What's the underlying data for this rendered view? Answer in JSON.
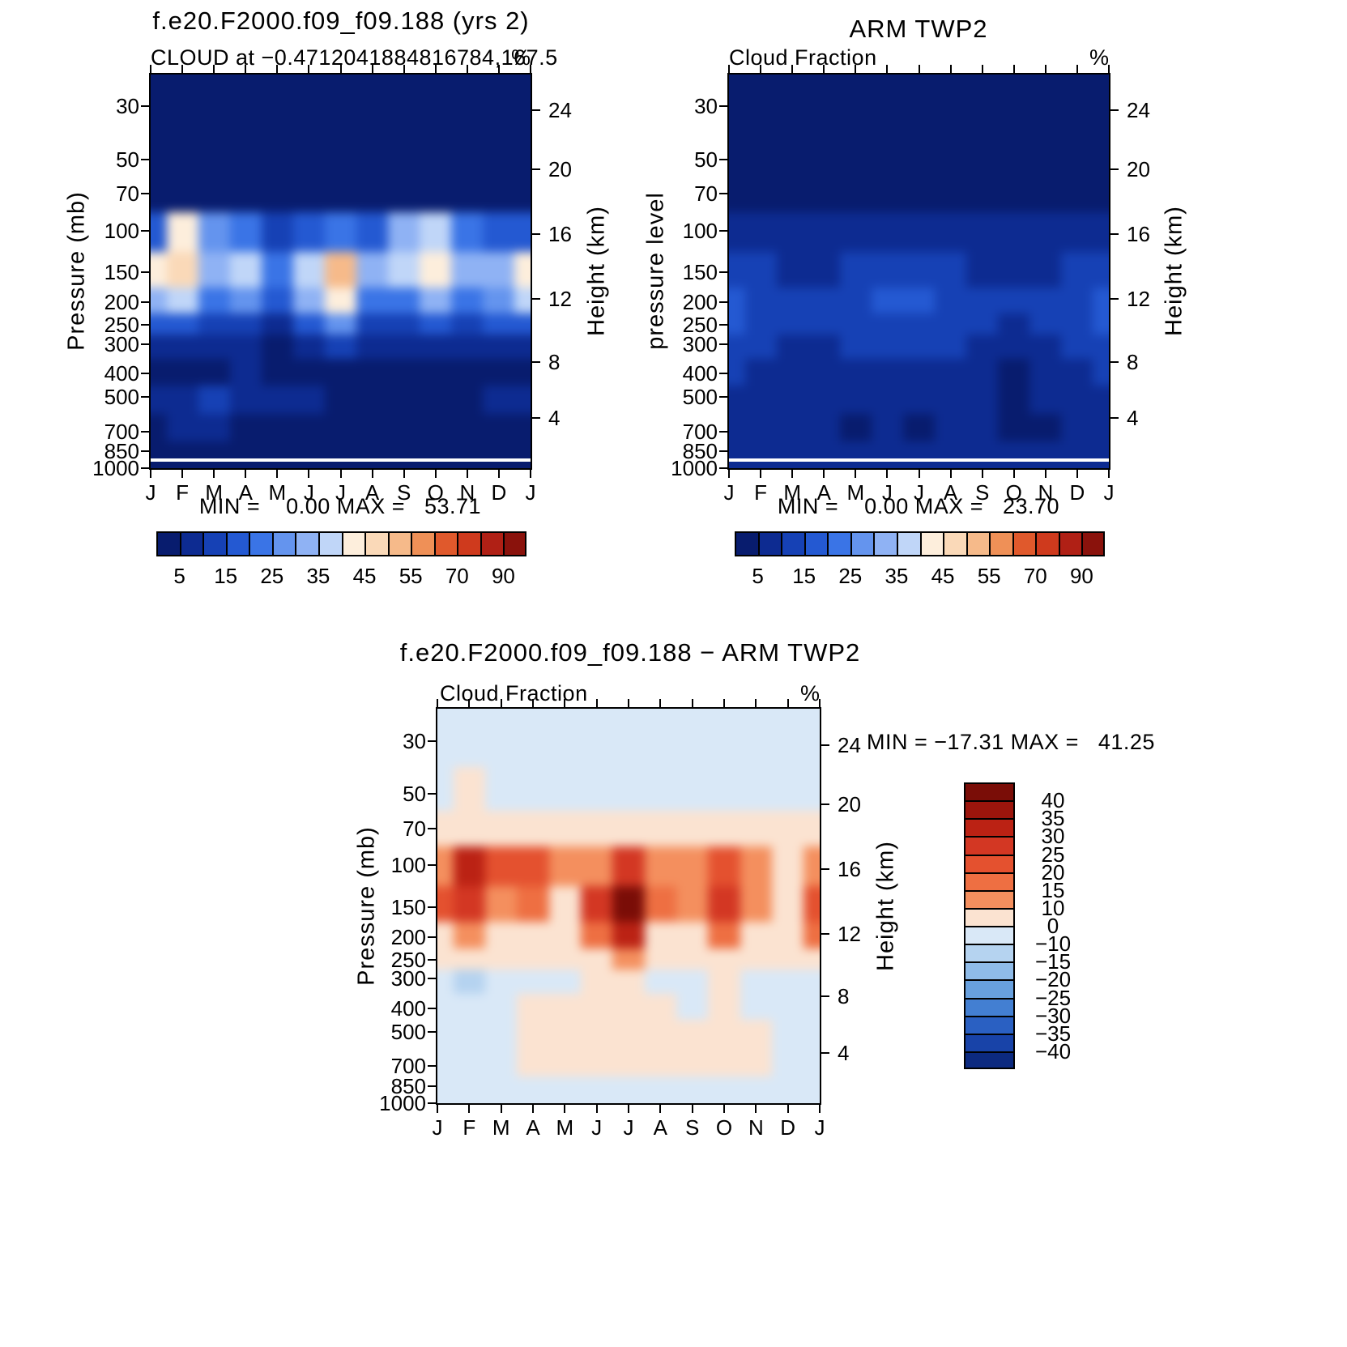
{
  "page": {
    "background": "#ffffff"
  },
  "months": [
    "J",
    "F",
    "M",
    "A",
    "M",
    "J",
    "J",
    "A",
    "S",
    "O",
    "N",
    "D",
    "J"
  ],
  "pressure_ticks": [
    "30",
    "50",
    "70",
    "100",
    "150",
    "200",
    "250",
    "300",
    "400",
    "500",
    "700",
    "850",
    "1000"
  ],
  "height_ticks": [
    "24",
    "20",
    "16",
    "12",
    "8",
    "4"
  ],
  "cloud_colorbar": {
    "labels": [
      "5",
      "15",
      "25",
      "35",
      "45",
      "55",
      "70",
      "90"
    ],
    "colors": [
      "#081c6e",
      "#0d2b91",
      "#1641b5",
      "#2459d2",
      "#3a74e6",
      "#6494ee",
      "#8fb2f4",
      "#c0d6f8",
      "#fdeedc",
      "#fad9b8",
      "#f6ba8a",
      "#ef9057",
      "#e0592c",
      "#cf3a1d",
      "#b02015",
      "#8a120c"
    ]
  },
  "diff_colorbar": {
    "labels": [
      "40",
      "35",
      "30",
      "25",
      "20",
      "15",
      "10",
      "0",
      "−10",
      "−15",
      "−20",
      "−25",
      "−30",
      "−35",
      "−40"
    ],
    "colors": [
      "#7a0d07",
      "#9c150c",
      "#bb2214",
      "#d33723",
      "#e4512f",
      "#ee6f42",
      "#f48f5e",
      "#fbe3d1",
      "#d9e8f7",
      "#b5d3f0",
      "#8fbbe8",
      "#68a0de",
      "#437fd2",
      "#2a60c2",
      "#1843a8",
      "#0c2a80"
    ]
  },
  "panels": {
    "model": {
      "title": "f.e20.F2000.f09_f09.188 (yrs 2)",
      "subtitle": "CLOUD at −0.4712041884816784,167.5",
      "unit": "%",
      "ylabel_left": "Pressure (mb)",
      "ylabel_right": "Height (km)",
      "minmax": "MIN =    0.00 MAX =   53.71"
    },
    "obs": {
      "title": "ARM TWP2",
      "subtitle": "Cloud Fraction",
      "unit": "%",
      "ylabel_left": "pressure level",
      "ylabel_right": "Height (km)",
      "minmax": "MIN =    0.00 MAX =   23.70"
    },
    "diff": {
      "title": "f.e20.F2000.f09_f09.188 − ARM TWP2",
      "subtitle": "Cloud Fraction",
      "unit": "%",
      "ylabel_left": "Pressure (mb)",
      "ylabel_right": "Height (km)",
      "minmax": "MIN = −17.31 MAX =   41.25"
    }
  },
  "chart_data": [
    {
      "type": "heatmap",
      "title": "f.e20.F2000.f09_f09.188 (yrs 2)",
      "subtitle": "CLOUD at -0.4712041884816784,167.5",
      "variable": "CLOUD",
      "units": "%",
      "x_categories": [
        "J",
        "F",
        "M",
        "A",
        "M",
        "J",
        "J",
        "A",
        "S",
        "O",
        "N",
        "D",
        "J"
      ],
      "y_pressure_mb": [
        30,
        50,
        70,
        100,
        150,
        200,
        250,
        300,
        400,
        500,
        700,
        850,
        1000
      ],
      "min": 0.0,
      "max": 53.71,
      "contour_levels": [
        5,
        10,
        15,
        20,
        25,
        30,
        35,
        40,
        45,
        50,
        55,
        60,
        70,
        80,
        90
      ],
      "values": [
        [
          1,
          1,
          1,
          1,
          1,
          1,
          1,
          1,
          1,
          1,
          1,
          1,
          1
        ],
        [
          1,
          1,
          1,
          1,
          1,
          1,
          1,
          1,
          1,
          1,
          1,
          1,
          1
        ],
        [
          2,
          3,
          2,
          2,
          2,
          2,
          2,
          2,
          3,
          3,
          2,
          2,
          2
        ],
        [
          18,
          43,
          26,
          20,
          14,
          17,
          22,
          15,
          30,
          38,
          24,
          17,
          18
        ],
        [
          44,
          47,
          30,
          37,
          22,
          38,
          52,
          32,
          36,
          44,
          30,
          34,
          44
        ],
        [
          31,
          36,
          22,
          26,
          15,
          30,
          42,
          22,
          22,
          31,
          22,
          28,
          36
        ],
        [
          16,
          18,
          12,
          12,
          8,
          16,
          26,
          12,
          10,
          16,
          12,
          16,
          18
        ],
        [
          8,
          8,
          6,
          5,
          4,
          8,
          12,
          6,
          5,
          8,
          6,
          8,
          9
        ],
        [
          4,
          2,
          4,
          5,
          3,
          2,
          4,
          2,
          2,
          2,
          3,
          4,
          4
        ],
        [
          6,
          7,
          11,
          8,
          5,
          6,
          4,
          3,
          2,
          2,
          4,
          6,
          6
        ],
        [
          4,
          5,
          5,
          4,
          3,
          4,
          2,
          2,
          2,
          2,
          3,
          4,
          4
        ],
        [
          3,
          4,
          4,
          3,
          3,
          3,
          2,
          2,
          2,
          2,
          3,
          3,
          3
        ],
        [
          2,
          2,
          2,
          2,
          2,
          2,
          2,
          2,
          2,
          2,
          2,
          2,
          2
        ]
      ]
    },
    {
      "type": "heatmap",
      "title": "ARM TWP2",
      "subtitle": "Cloud Fraction",
      "variable": "Cloud Fraction",
      "units": "%",
      "x_categories": [
        "J",
        "F",
        "M",
        "A",
        "M",
        "J",
        "J",
        "A",
        "S",
        "O",
        "N",
        "D",
        "J"
      ],
      "y_pressure_mb": [
        30,
        50,
        70,
        100,
        150,
        200,
        250,
        300,
        400,
        500,
        700,
        850,
        1000
      ],
      "min": 0.0,
      "max": 23.7,
      "contour_levels": [
        5,
        10,
        15,
        20,
        25,
        30,
        35,
        40,
        45,
        50,
        55,
        60,
        70,
        80,
        90
      ],
      "values": [
        [
          0,
          0,
          0,
          0,
          0,
          0,
          0,
          0,
          0,
          0,
          0,
          0,
          0
        ],
        [
          1,
          1,
          1,
          1,
          1,
          1,
          1,
          1,
          1,
          1,
          1,
          1,
          1
        ],
        [
          3,
          2,
          2,
          2,
          2,
          2,
          2,
          2,
          2,
          2,
          2,
          2,
          3
        ],
        [
          8,
          6,
          5,
          5,
          5,
          6,
          6,
          5,
          5,
          5,
          5,
          6,
          8
        ],
        [
          14,
          10,
          9,
          9,
          10,
          12,
          12,
          10,
          9,
          8,
          9,
          11,
          14
        ],
        [
          18,
          14,
          12,
          12,
          13,
          16,
          15,
          13,
          11,
          10,
          12,
          14,
          18
        ],
        [
          16,
          13,
          11,
          11,
          12,
          14,
          13,
          12,
          10,
          9,
          11,
          13,
          16
        ],
        [
          13,
          11,
          9,
          9,
          10,
          11,
          11,
          10,
          8,
          7,
          9,
          11,
          13
        ],
        [
          10,
          9,
          8,
          8,
          8,
          9,
          8,
          8,
          6,
          4,
          7,
          9,
          10
        ],
        [
          9,
          8,
          7,
          7,
          6,
          7,
          6,
          7,
          5,
          3,
          6,
          8,
          9
        ],
        [
          8,
          7,
          6,
          6,
          4,
          6,
          4,
          6,
          5,
          3,
          4,
          7,
          8
        ],
        [
          7,
          7,
          6,
          6,
          6,
          6,
          6,
          6,
          6,
          5,
          6,
          7,
          7
        ],
        [
          6,
          6,
          6,
          6,
          6,
          6,
          6,
          6,
          6,
          6,
          6,
          6,
          6
        ]
      ]
    },
    {
      "type": "heatmap",
      "title": "f.e20.F2000.f09_f09.188 − ARM TWP2",
      "subtitle": "Cloud Fraction",
      "variable": "Cloud Fraction difference",
      "units": "%",
      "x_categories": [
        "J",
        "F",
        "M",
        "A",
        "M",
        "J",
        "J",
        "A",
        "S",
        "O",
        "N",
        "D",
        "J"
      ],
      "y_pressure_mb": [
        30,
        50,
        70,
        100,
        150,
        200,
        250,
        300,
        400,
        500,
        700,
        850,
        1000
      ],
      "min": -17.31,
      "max": 41.25,
      "contour_levels": [
        40,
        35,
        30,
        25,
        20,
        15,
        10,
        0,
        -10,
        -15,
        -20,
        -25,
        -30,
        -35,
        -40
      ],
      "values": [
        [
          -1,
          -1,
          -1,
          -1,
          -1,
          -1,
          -1,
          -1,
          -1,
          -1,
          -1,
          -1,
          -1
        ],
        [
          -1,
          3,
          -1,
          -1,
          -1,
          -1,
          -1,
          -1,
          -1,
          -1,
          -1,
          -1,
          -1
        ],
        [
          3,
          7,
          3,
          3,
          3,
          3,
          3,
          3,
          3,
          3,
          3,
          2,
          4
        ],
        [
          12,
          34,
          20,
          23,
          12,
          14,
          25,
          14,
          12,
          23,
          12,
          8,
          14
        ],
        [
          20,
          29,
          13,
          19,
          8,
          29,
          40,
          19,
          13,
          29,
          13,
          9,
          23
        ],
        [
          8,
          13,
          6,
          8,
          4,
          16,
          31,
          8,
          5,
          16,
          6,
          7,
          16
        ],
        [
          3,
          4,
          2,
          3,
          2,
          6,
          13,
          4,
          2,
          6,
          3,
          3,
          8
        ],
        [
          -4,
          -14,
          -4,
          -2,
          -2,
          2,
          4,
          -2,
          -2,
          2,
          -2,
          -3,
          -3
        ],
        [
          -5,
          -8,
          -4,
          2,
          3,
          3,
          3,
          2,
          -2,
          2,
          -3,
          -4,
          -5
        ],
        [
          -2,
          -6,
          -2,
          3,
          4,
          4,
          3,
          3,
          2,
          4,
          2,
          -2,
          -2
        ],
        [
          -3,
          -5,
          -2,
          2,
          3,
          3,
          4,
          2,
          2,
          3,
          2,
          -2,
          -3
        ],
        [
          -3,
          -3,
          -2,
          -2,
          -2,
          -2,
          -2,
          -2,
          -2,
          -2,
          -2,
          -2,
          -3
        ],
        [
          -2,
          -2,
          -2,
          -2,
          -2,
          -2,
          -2,
          -2,
          -2,
          -2,
          -2,
          -2,
          -2
        ]
      ]
    }
  ]
}
